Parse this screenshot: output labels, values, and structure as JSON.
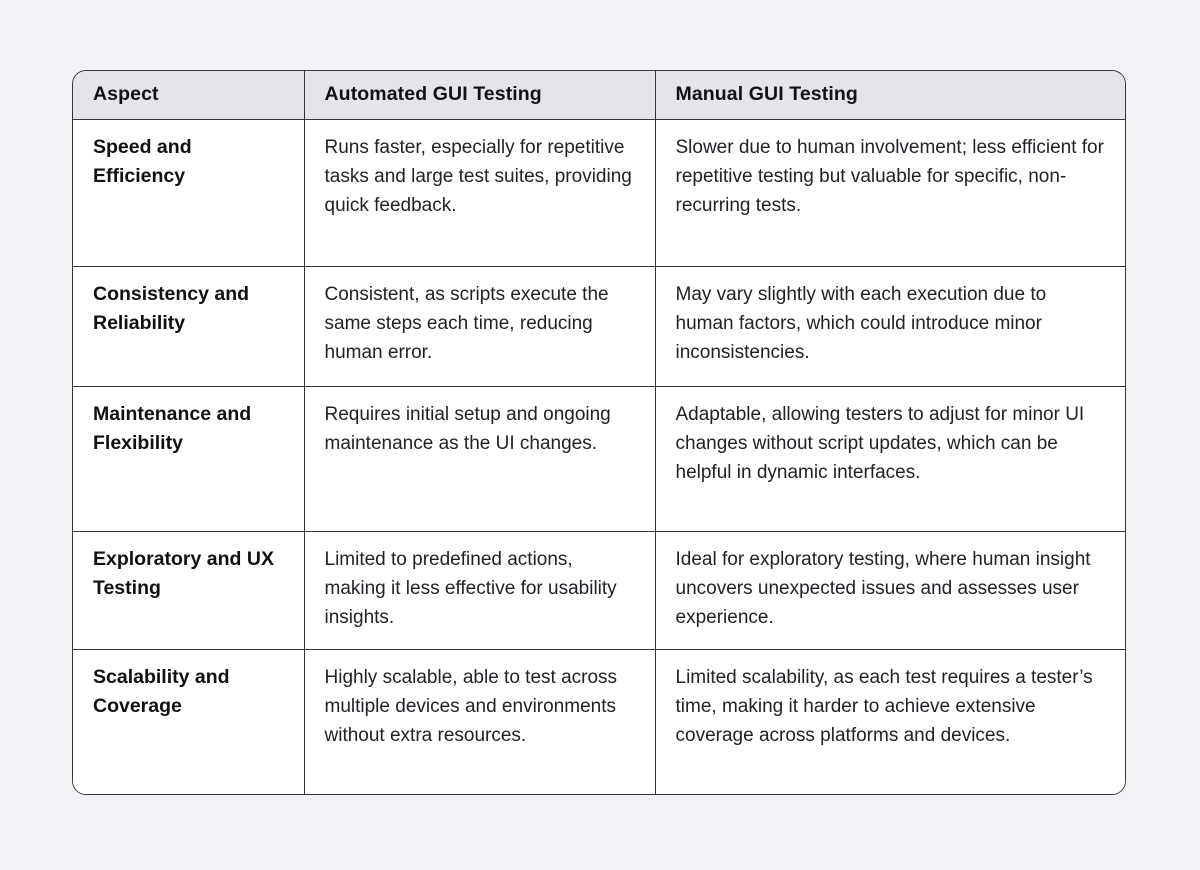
{
  "page": {
    "background_color": "#f0f2f5",
    "header_bg_color": "#e3e5e8",
    "border_color": "#373737"
  },
  "table": {
    "columns": [
      {
        "label": "Aspect"
      },
      {
        "label": "Automated GUI Testing"
      },
      {
        "label": "Manual GUI Testing"
      }
    ],
    "rows": [
      {
        "aspect": "Speed and Efficiency",
        "automated": "Runs faster, especially for repetitive tasks and large test suites, providing quick feedback.",
        "manual": "Slower due to human involvement; less efficient for repetitive testing but valuable for specific, non-recurring tests."
      },
      {
        "aspect": "Consistency and Reliability",
        "automated": "Consistent, as scripts execute the same steps each time, reducing human error.",
        "manual": "May vary slightly with each execution due to human factors, which could introduce minor inconsistencies."
      },
      {
        "aspect": "Maintenance and Flexibility",
        "automated": "Requires initial setup and ongoing maintenance as the UI changes.",
        "manual": "Adaptable, allowing testers to adjust for minor UI changes without script updates, which can be helpful in dynamic interfaces."
      },
      {
        "aspect": "Exploratory and UX Testing",
        "automated": "Limited to predefined actions, making it less effective for usability insights.",
        "manual": "Ideal for exploratory testing, where human insight uncovers unexpected issues and assesses user experience."
      },
      {
        "aspect": "Scalability and Coverage",
        "automated": "Highly scalable, able to test across multiple devices and environments without extra resources.",
        "manual": "Limited scalability, as each test requires a tester’s time, making it harder to achieve extensive coverage across platforms and devices."
      }
    ]
  }
}
